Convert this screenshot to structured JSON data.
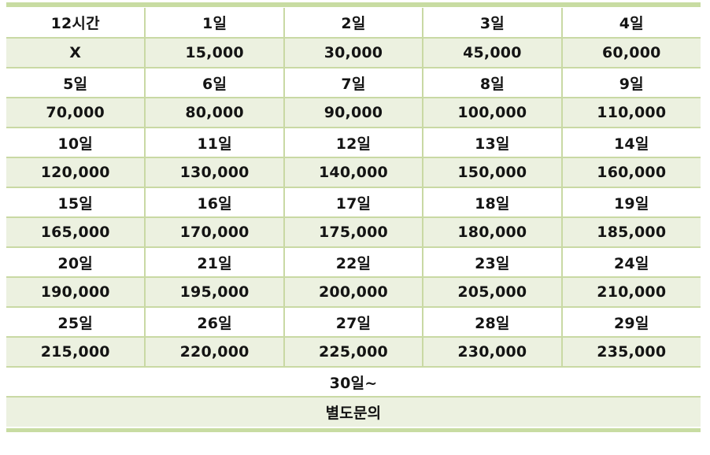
{
  "colors": {
    "row_green": "#ECF1E0",
    "grid_line": "#C9D9A4",
    "edge_bar": "#C8DCA2",
    "text": "#141414"
  },
  "table": {
    "rows": [
      {
        "kind": "day",
        "cells": [
          "12시간",
          "1일",
          "2일",
          "3일",
          "4일"
        ]
      },
      {
        "kind": "price",
        "cells": [
          "X",
          "15,000",
          "30,000",
          "45,000",
          "60,000"
        ]
      },
      {
        "kind": "day",
        "cells": [
          "5일",
          "6일",
          "7일",
          "8일",
          "9일"
        ]
      },
      {
        "kind": "price",
        "cells": [
          "70,000",
          "80,000",
          "90,000",
          "100,000",
          "110,000"
        ]
      },
      {
        "kind": "day",
        "cells": [
          "10일",
          "11일",
          "12일",
          "13일",
          "14일"
        ]
      },
      {
        "kind": "price",
        "cells": [
          "120,000",
          "130,000",
          "140,000",
          "150,000",
          "160,000"
        ]
      },
      {
        "kind": "day",
        "cells": [
          "15일",
          "16일",
          "17일",
          "18일",
          "19일"
        ]
      },
      {
        "kind": "price",
        "cells": [
          "165,000",
          "170,000",
          "175,000",
          "180,000",
          "185,000"
        ]
      },
      {
        "kind": "day",
        "cells": [
          "20일",
          "21일",
          "22일",
          "23일",
          "24일"
        ]
      },
      {
        "kind": "price",
        "cells": [
          "190,000",
          "195,000",
          "200,000",
          "205,000",
          "210,000"
        ]
      },
      {
        "kind": "day",
        "cells": [
          "25일",
          "26일",
          "27일",
          "28일",
          "29일"
        ]
      },
      {
        "kind": "price",
        "cells": [
          "215,000",
          "220,000",
          "225,000",
          "230,000",
          "235,000"
        ]
      }
    ],
    "footer_day": "30일~",
    "footer_price": "별도문의"
  }
}
